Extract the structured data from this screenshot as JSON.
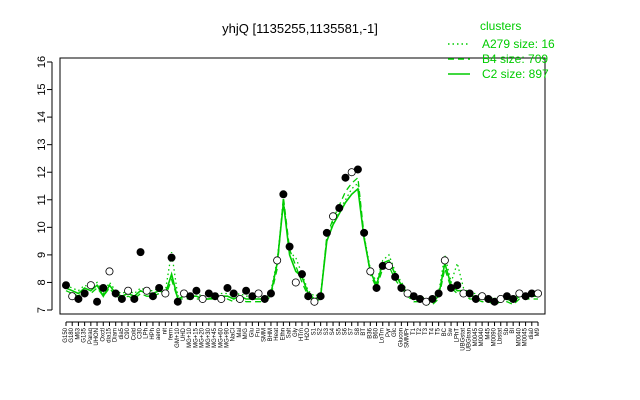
{
  "chart_data": {
    "type": "line",
    "title": "yhjQ [1135255,1135581,-1]",
    "xlabel": "",
    "ylabel": "",
    "ylim": [
      7,
      16
    ],
    "yticks": [
      7,
      8,
      9,
      10,
      11,
      12,
      13,
      14,
      15,
      16
    ],
    "legend": {
      "title": "clusters",
      "position": "top-right",
      "entries": [
        {
          "label": "A279 size: 16",
          "style": "dotted"
        },
        {
          "label": "B4 size: 709",
          "style": "dashed"
        },
        {
          "label": "C2 size: 897",
          "style": "solid"
        }
      ]
    },
    "colors": {
      "series": "#00cc00",
      "point_fill": "#000000",
      "point_open": "#ffffff",
      "axis": "#000000"
    },
    "x_labels": [
      "G150",
      "G180",
      "M63",
      "G135",
      "Paraq",
      "UHON",
      "Oxctl",
      "dia15",
      "Diam",
      "dia5",
      "C90",
      "Cold",
      "C30",
      "LPh",
      "HPh",
      "aero",
      "nit",
      "ferm",
      "GM+10",
      "UHD",
      "MG+10",
      "MG+15",
      "MG+20",
      "MG+30",
      "MG+45",
      "MG+60",
      "MG+90",
      "NaCl",
      "Mal",
      "M/G",
      "Glu",
      "Fru",
      "SMM",
      "BHM",
      "Heat",
      "Ethn",
      "Salt",
      "Gly",
      "HTm",
      "H2O",
      "S1",
      "S2",
      "S3",
      "S4",
      "S5",
      "S6",
      "S7",
      "S8",
      "BT",
      "B36",
      "B60",
      "LoTm",
      "Pyr",
      "Glc",
      "Glucon",
      "SMMPr",
      "T1",
      "T2",
      "T3",
      "T4",
      "T5",
      "BC",
      "Sw",
      "LPhT",
      "UBGstat",
      "UBGtran",
      "M0045",
      "M0040",
      "M45",
      "M0090",
      "Lbstat",
      "Sb",
      "BI",
      "M0040b",
      "M0045b",
      "dia0",
      "UBGb"
    ],
    "x_display_labels": [
      "G150",
      "G180",
      "M63",
      "G135",
      "Paraq",
      "UHON",
      "Oxctl",
      "dia15",
      "Diam",
      "dia5",
      "C90",
      "Cold",
      "C30",
      "LPh",
      "HPh",
      "aero",
      "nit",
      "ferm",
      "GM+10",
      "UHD",
      "MG+10",
      "MG+15",
      "MG+20",
      "MG+30",
      "MG+45",
      "MG+60",
      "MG+90",
      "NaCl",
      "Mal",
      "M/G",
      "Glu",
      "Fru",
      "SMM",
      "BHM",
      "Heat",
      "Ethn",
      "Salt",
      "Gly",
      "HTm",
      "H2O",
      "S1",
      "S2",
      "S3",
      "S4",
      "S5",
      "S6",
      "S7",
      "S8",
      "BT",
      "B36",
      "B60",
      "LoTm",
      "Pyr",
      "Glc",
      "Glucon",
      "SMMPr",
      "T1",
      "T2",
      "T3",
      "T4",
      "T5",
      "BC",
      "Sw",
      "LPhT",
      "UBGstat",
      "UBGtran",
      "M0045",
      "M0040",
      "M45",
      "M0090",
      "Lbstat",
      "Sb",
      "BI",
      "M0040",
      "M0045",
      "dia0",
      "M9"
    ],
    "series": [
      {
        "style": "solid",
        "values": [
          7.8,
          7.7,
          7.6,
          7.8,
          7.7,
          7.9,
          7.5,
          7.9,
          7.6,
          7.5,
          7.6,
          7.5,
          7.7,
          7.6,
          7.6,
          7.7,
          7.6,
          8.3,
          7.4,
          7.5,
          7.5,
          7.5,
          7.4,
          7.4,
          7.5,
          7.5,
          7.5,
          7.4,
          7.5,
          7.4,
          7.4,
          7.4,
          7.4,
          7.6,
          8.7,
          10.9,
          9.0,
          8.4,
          8.2,
          7.6,
          7.4,
          7.5,
          9.5,
          10.1,
          10.5,
          10.9,
          11.2,
          11.4,
          9.6,
          8.4,
          7.9,
          8.7,
          8.8,
          8.3,
          7.9,
          7.6,
          7.4,
          7.4,
          7.3,
          7.3,
          7.5,
          8.7,
          7.9,
          7.7,
          7.7,
          7.5,
          7.5,
          7.4,
          7.4,
          7.3,
          7.4,
          7.4,
          7.3,
          7.5,
          7.5,
          7.5,
          7.5
        ]
      },
      {
        "style": "dashed",
        "values": [
          7.7,
          7.6,
          7.5,
          7.7,
          7.6,
          7.8,
          7.5,
          7.8,
          7.5,
          7.4,
          7.5,
          7.4,
          7.6,
          7.5,
          7.5,
          7.6,
          7.5,
          8.1,
          7.4,
          7.4,
          7.4,
          7.4,
          7.4,
          7.4,
          7.4,
          7.4,
          7.4,
          7.3,
          7.4,
          7.3,
          7.3,
          7.3,
          7.3,
          7.5,
          8.5,
          11.1,
          9.2,
          8.6,
          8.0,
          7.5,
          7.3,
          7.4,
          9.7,
          10.3,
          10.8,
          11.3,
          11.6,
          11.8,
          9.7,
          8.3,
          7.8,
          8.5,
          8.6,
          8.1,
          7.8,
          7.5,
          7.3,
          7.3,
          7.2,
          7.2,
          7.4,
          8.5,
          7.8,
          7.6,
          7.6,
          7.4,
          7.4,
          7.3,
          7.3,
          7.2,
          7.3,
          7.3,
          7.2,
          7.4,
          7.4,
          7.4,
          7.4
        ]
      },
      {
        "style": "dotted",
        "values": [
          7.9,
          7.8,
          7.7,
          7.9,
          7.8,
          8.0,
          7.6,
          8.0,
          7.7,
          7.6,
          7.7,
          7.6,
          7.8,
          7.7,
          7.7,
          7.8,
          7.7,
          9.1,
          7.5,
          7.6,
          7.6,
          7.6,
          7.5,
          7.5,
          7.6,
          7.6,
          7.6,
          7.5,
          7.6,
          7.5,
          7.5,
          7.5,
          7.5,
          7.7,
          8.8,
          11.0,
          9.1,
          8.9,
          8.3,
          7.7,
          7.5,
          7.6,
          9.6,
          10.2,
          10.6,
          11.0,
          11.4,
          11.6,
          9.7,
          8.5,
          8.0,
          8.8,
          9.0,
          8.4,
          8.0,
          7.7,
          7.5,
          7.5,
          7.4,
          7.4,
          7.6,
          9.0,
          8.0,
          8.7,
          7.8,
          7.6,
          7.6,
          7.5,
          7.5,
          7.4,
          7.5,
          7.5,
          7.4,
          7.6,
          7.6,
          7.6,
          7.6
        ]
      }
    ],
    "points": [
      7.9,
      7.5,
      7.4,
      7.6,
      7.9,
      7.3,
      7.8,
      8.4,
      7.6,
      7.4,
      7.7,
      7.4,
      9.1,
      7.7,
      7.5,
      7.8,
      7.6,
      8.9,
      7.3,
      7.6,
      7.5,
      7.7,
      7.4,
      7.6,
      7.5,
      7.4,
      7.8,
      7.6,
      7.4,
      7.7,
      7.5,
      7.6,
      7.4,
      7.6,
      8.8,
      11.2,
      9.3,
      8.0,
      8.3,
      7.5,
      7.3,
      7.5,
      9.8,
      10.4,
      10.7,
      11.8,
      12.0,
      12.1,
      9.8,
      8.4,
      7.8,
      8.6,
      8.6,
      8.2,
      7.8,
      7.6,
      7.5,
      7.4,
      7.3,
      7.4,
      7.6,
      8.8,
      7.8,
      7.9,
      7.6,
      7.6,
      7.4,
      7.5,
      7.4,
      7.3,
      7.4,
      7.5,
      7.4,
      7.6,
      7.5,
      7.6,
      7.6
    ]
  }
}
